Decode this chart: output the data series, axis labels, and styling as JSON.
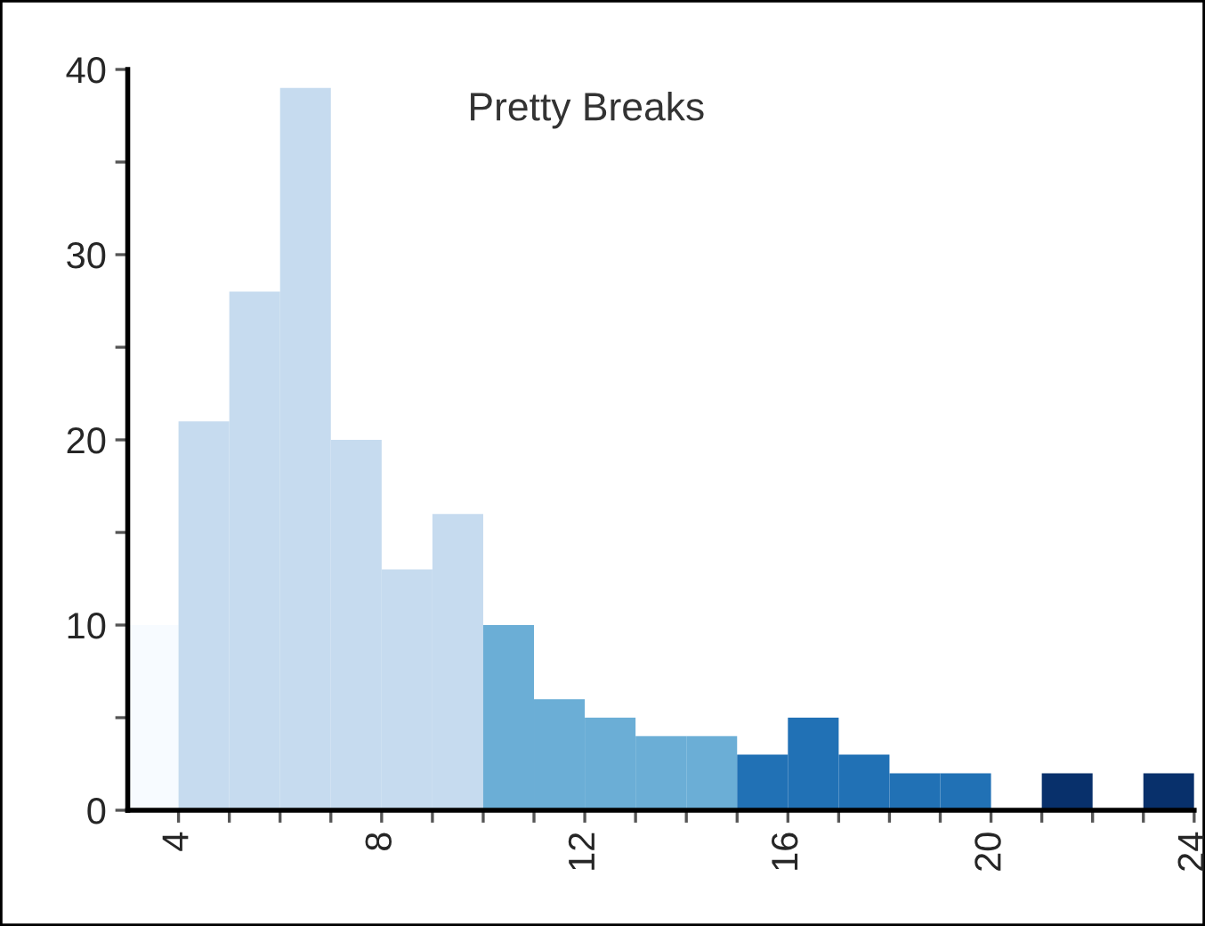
{
  "chart_data": {
    "type": "histogram",
    "title": "Pretty Breaks",
    "bins": [
      3,
      4,
      5,
      6,
      7,
      8,
      9,
      10,
      11,
      12,
      13,
      14,
      15,
      16,
      17,
      18,
      19,
      20,
      21,
      22,
      23,
      24
    ],
    "values": [
      10,
      21,
      28,
      39,
      20,
      13,
      16,
      10,
      6,
      5,
      4,
      4,
      3,
      5,
      3,
      2,
      2,
      0,
      2,
      0,
      2
    ],
    "colors": [
      "#f7fbff",
      "#c6dbef",
      "#c6dbef",
      "#c6dbef",
      "#c6dbef",
      "#c6dbef",
      "#c6dbef",
      "#6baed6",
      "#6baed6",
      "#6baed6",
      "#6baed6",
      "#6baed6",
      "#2171b5",
      "#2171b5",
      "#2171b5",
      "#2171b5",
      "#2171b5",
      "#08306b",
      "#08306b",
      "#08306b",
      "#08306b"
    ],
    "xlim": [
      3,
      24
    ],
    "ylim": [
      0,
      40
    ],
    "xticks": [
      4,
      {
        "value": 5,
        "label": null
      },
      {
        "value": 6,
        "label": null
      },
      {
        "value": 7,
        "label": null
      },
      8,
      {
        "value": 9,
        "label": null
      },
      {
        "value": 10,
        "label": null
      },
      {
        "value": 11,
        "label": null
      },
      12,
      {
        "value": 13,
        "label": null
      },
      {
        "value": 14,
        "label": null
      },
      {
        "value": 15,
        "label": null
      },
      16,
      {
        "value": 17,
        "label": null
      },
      {
        "value": 18,
        "label": null
      },
      {
        "value": 19,
        "label": null
      },
      20,
      {
        "value": 21,
        "label": null
      },
      {
        "value": 22,
        "label": null
      },
      {
        "value": 23,
        "label": null
      },
      24
    ],
    "yticks": [
      0,
      {
        "value": 5,
        "label": null
      },
      10,
      {
        "value": 15,
        "label": null
      },
      20,
      {
        "value": 25,
        "label": null
      },
      30,
      {
        "value": 35,
        "label": null
      },
      40
    ],
    "grid": false,
    "legend": false
  }
}
